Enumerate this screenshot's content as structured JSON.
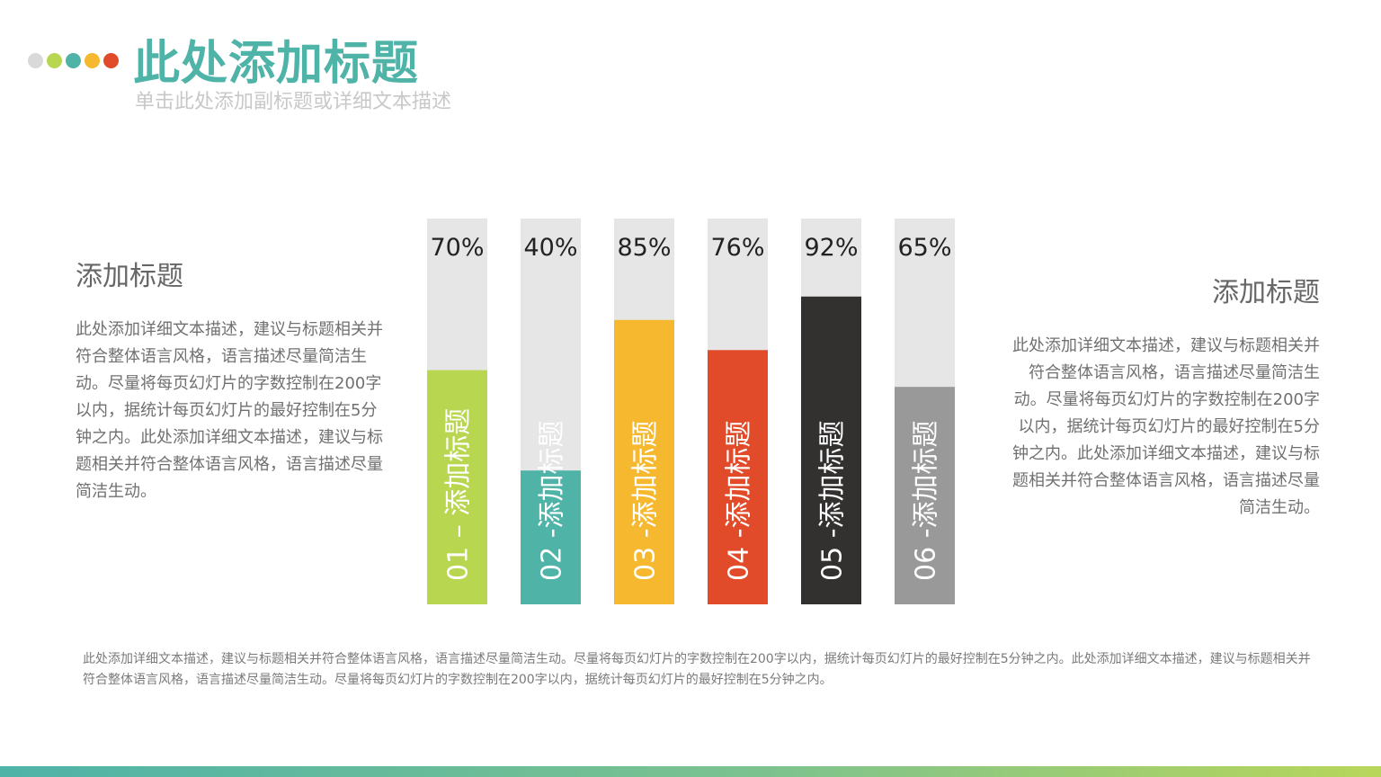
{
  "header": {
    "title": "此处添加标题",
    "subtitle": "单击此处添加副标题或详细文本描述",
    "dot_colors": [
      "#d9d9d9",
      "#b9d650",
      "#4fb3a8",
      "#f5b82e",
      "#e24b2a"
    ]
  },
  "left_panel": {
    "heading": "添加标题",
    "body": "此处添加详细文本描述，建议与标题相关并符合整体语言风格，语言描述尽量简洁生动。尽量将每页幻灯片的字数控制在200字以内，据统计每页幻灯片的最好控制在5分钟之内。此处添加详细文本描述，建议与标题相关并符合整体语言风格，语言描述尽量简洁生动。"
  },
  "right_panel": {
    "heading": "添加标题",
    "body": "此处添加详细文本描述，建议与标题相关并符合整体语言风格，语言描述尽量简洁生动。尽量将每页幻灯片的字数控制在200字以内，据统计每页幻灯片的最好控制在5分钟之内。此处添加详细文本描述，建议与标题相关并符合整体语言风格，语言描述尽量简洁生动。"
  },
  "footer": {
    "text": "此处添加详细文本描述，建议与标题相关并符合整体语言风格，语言描述尽量简洁生动。尽量将每页幻灯片的字数控制在200字以内，据统计每页幻灯片的最好控制在5分钟之内。此处添加详细文本描述，建议与标题相关并符合整体语言风格，语言描述尽量简洁生动。尽量将每页幻灯片的字数控制在200字以内，据统计每页幻灯片的最好控制在5分钟之内。"
  },
  "chart_data": {
    "type": "bar",
    "ylim": [
      0,
      100
    ],
    "grid": false,
    "track_color": "#e6e6e6",
    "bars": [
      {
        "label": "01 – 添加标题",
        "value": 70,
        "value_label": "70%",
        "color": "#b9d650"
      },
      {
        "label": "02 -添加标题",
        "value": 40,
        "value_label": "40%",
        "color": "#4fb3a8"
      },
      {
        "label": "03 -添加标题",
        "value": 85,
        "value_label": "85%",
        "color": "#f5b82e"
      },
      {
        "label": "04 -添加标题",
        "value": 76,
        "value_label": "76%",
        "color": "#e24b2a"
      },
      {
        "label": "05 -添加标题",
        "value": 92,
        "value_label": "92%",
        "color": "#333030"
      },
      {
        "label": "06 -添加标题",
        "value": 65,
        "value_label": "65%",
        "color": "#999999"
      }
    ]
  }
}
